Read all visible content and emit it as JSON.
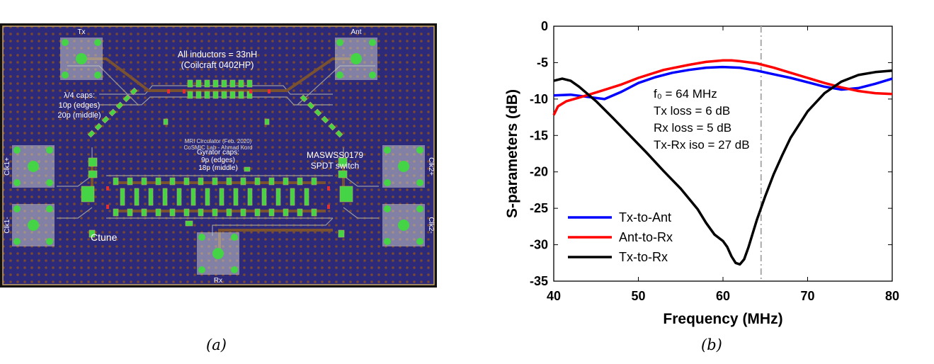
{
  "panel_a": {
    "pad_labels": {
      "tx": "Tx",
      "ant": "Ant",
      "rx": "Rx",
      "clk1p": "Clk1+",
      "clk1m": "Clk1-",
      "clk2p": "Clk2+",
      "clk2m": "Clk2-"
    },
    "inductors_line1": "All inductors = 33nH",
    "inductors_line2": "(Coilcraft 0402HP)",
    "quarter_caps_line1": "λ/4 caps:",
    "quarter_caps_line2": "10p (edges)",
    "quarter_caps_line3": "20p (middle)",
    "title_line1": "MRI Circulator (Feb. 2020)",
    "title_line2": "CoSMIC Lab - Ahmad Kord",
    "gyrator_line1": "Gyrator caps:",
    "gyrator_line2": "9p (edges)",
    "gyrator_line3": "18p (middle)",
    "switch_line1": "MASWSS0179",
    "switch_line2": "SPDT switch",
    "ctune": "Ctune",
    "caption": "(a)",
    "colors": {
      "board": "#2e2a7a",
      "pad": "#c8c8c8",
      "dot": "#45d445",
      "trace": "#7a5230"
    }
  },
  "panel_b": {
    "caption": "(b)",
    "annotations": [
      "f₀ = 64 MHz",
      "Tx loss = 6 dB",
      "Rx loss = 5 dB",
      "Tx-Rx iso = 27 dB"
    ]
  },
  "chart_data": {
    "type": "line",
    "title": "",
    "xlabel": "Frequency (MHz)",
    "ylabel": "S-parameters (dB)",
    "xlim": [
      40,
      80
    ],
    "ylim": [
      -35,
      0
    ],
    "xticks": [
      40,
      50,
      60,
      70,
      80
    ],
    "yticks": [
      0,
      -5,
      -10,
      -15,
      -20,
      -25,
      -30,
      -35
    ],
    "vline": {
      "x": 64.5,
      "style": "dash-dot",
      "color": "#aaaaaa"
    },
    "legend": "bottom-left",
    "grid": false,
    "series": [
      {
        "name": "Tx-to-Ant",
        "color": "#0000ff",
        "points": [
          [
            40,
            -9.5
          ],
          [
            42,
            -9.4
          ],
          [
            44,
            -9.7
          ],
          [
            46,
            -10.0
          ],
          [
            48,
            -9.0
          ],
          [
            50,
            -7.8
          ],
          [
            52,
            -7.0
          ],
          [
            54,
            -6.4
          ],
          [
            56,
            -6.0
          ],
          [
            58,
            -5.7
          ],
          [
            60,
            -5.6
          ],
          [
            62,
            -5.7
          ],
          [
            64,
            -6.1
          ],
          [
            66,
            -6.6
          ],
          [
            68,
            -7.1
          ],
          [
            70,
            -7.7
          ],
          [
            72,
            -8.3
          ],
          [
            74,
            -8.7
          ],
          [
            75,
            -8.6
          ],
          [
            76,
            -8.5
          ],
          [
            78,
            -7.9
          ],
          [
            80,
            -7.2
          ]
        ]
      },
      {
        "name": "Ant-to-Rx",
        "color": "#ff0000",
        "points": [
          [
            40,
            -12.2
          ],
          [
            40.5,
            -11.0
          ],
          [
            41.5,
            -10.3
          ],
          [
            43,
            -9.8
          ],
          [
            45,
            -9.1
          ],
          [
            48,
            -8.0
          ],
          [
            50,
            -7.1
          ],
          [
            53,
            -6.0
          ],
          [
            56,
            -5.3
          ],
          [
            58,
            -4.9
          ],
          [
            60,
            -4.7
          ],
          [
            61,
            -4.7
          ],
          [
            62,
            -4.8
          ],
          [
            64,
            -5.1
          ],
          [
            66,
            -5.7
          ],
          [
            68,
            -6.4
          ],
          [
            70,
            -7.1
          ],
          [
            72,
            -7.8
          ],
          [
            74,
            -8.4
          ],
          [
            76,
            -8.9
          ],
          [
            78,
            -9.2
          ],
          [
            80,
            -9.3
          ]
        ]
      },
      {
        "name": "Tx-to-Rx",
        "color": "#000000",
        "points": [
          [
            40,
            -7.5
          ],
          [
            41,
            -7.2
          ],
          [
            42,
            -7.5
          ],
          [
            43,
            -8.3
          ],
          [
            44,
            -9.3
          ],
          [
            45,
            -10.3
          ],
          [
            47,
            -12.6
          ],
          [
            49,
            -15.0
          ],
          [
            51,
            -17.4
          ],
          [
            53,
            -19.9
          ],
          [
            55,
            -22.3
          ],
          [
            57,
            -25.1
          ],
          [
            58,
            -27.0
          ],
          [
            59,
            -28.6
          ],
          [
            60,
            -29.5
          ],
          [
            60.5,
            -30.3
          ],
          [
            61,
            -31.6
          ],
          [
            61.5,
            -32.5
          ],
          [
            62,
            -32.7
          ],
          [
            62.5,
            -32.0
          ],
          [
            63,
            -30.4
          ],
          [
            63.5,
            -28.5
          ],
          [
            64,
            -26.6
          ],
          [
            65,
            -23.3
          ],
          [
            66,
            -20.3
          ],
          [
            67,
            -17.7
          ],
          [
            68,
            -15.3
          ],
          [
            70,
            -11.7
          ],
          [
            72,
            -9.2
          ],
          [
            74,
            -7.6
          ],
          [
            76,
            -6.7
          ],
          [
            78,
            -6.3
          ],
          [
            80,
            -6.1
          ]
        ]
      }
    ]
  }
}
